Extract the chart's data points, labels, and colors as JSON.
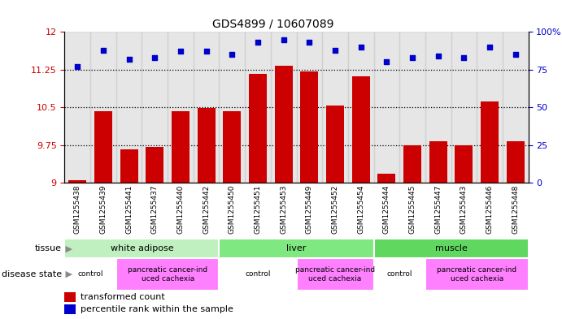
{
  "title": "GDS4899 / 10607089",
  "samples": [
    "GSM1255438",
    "GSM1255439",
    "GSM1255441",
    "GSM1255437",
    "GSM1255440",
    "GSM1255442",
    "GSM1255450",
    "GSM1255451",
    "GSM1255453",
    "GSM1255449",
    "GSM1255452",
    "GSM1255454",
    "GSM1255444",
    "GSM1255445",
    "GSM1255447",
    "GSM1255443",
    "GSM1255446",
    "GSM1255448"
  ],
  "bar_values": [
    9.05,
    10.43,
    9.67,
    9.72,
    10.42,
    10.48,
    10.43,
    11.17,
    11.32,
    11.22,
    10.54,
    11.12,
    9.18,
    9.75,
    9.82,
    9.75,
    10.62,
    9.83
  ],
  "dot_values": [
    77,
    88,
    82,
    83,
    87,
    87,
    85,
    93,
    95,
    93,
    88,
    90,
    80,
    83,
    84,
    83,
    90,
    85
  ],
  "ylim_left": [
    9.0,
    12.0
  ],
  "ylim_right": [
    0,
    100
  ],
  "yticks_left": [
    9.0,
    9.75,
    10.5,
    11.25,
    12.0
  ],
  "yticks_right": [
    0,
    25,
    50,
    75,
    100
  ],
  "ytick_labels_left": [
    "9",
    "9.75",
    "10.5",
    "11.25",
    "12"
  ],
  "ytick_labels_right": [
    "0",
    "25",
    "50",
    "75",
    "100%"
  ],
  "bar_color": "#cc0000",
  "dot_color": "#0000cc",
  "col_bg_color": "#c8c8c8",
  "tissue_groups": [
    {
      "label": "white adipose",
      "start": 0,
      "end": 6,
      "color": "#c0f0c0"
    },
    {
      "label": "liver",
      "start": 6,
      "end": 12,
      "color": "#80e880"
    },
    {
      "label": "muscle",
      "start": 12,
      "end": 18,
      "color": "#60d860"
    }
  ],
  "disease_groups": [
    {
      "label": "control",
      "start": 0,
      "end": 2,
      "color": "#ffffff"
    },
    {
      "label": "pancreatic cancer-ind\nuced cachexia",
      "start": 2,
      "end": 6,
      "color": "#ff80ff"
    },
    {
      "label": "control",
      "start": 6,
      "end": 9,
      "color": "#ffffff"
    },
    {
      "label": "pancreatic cancer-ind\nuced cachexia",
      "start": 9,
      "end": 12,
      "color": "#ff80ff"
    },
    {
      "label": "control",
      "start": 12,
      "end": 14,
      "color": "#ffffff"
    },
    {
      "label": "pancreatic cancer-ind\nuced cachexia",
      "start": 14,
      "end": 18,
      "color": "#ff80ff"
    }
  ],
  "legend_items": [
    {
      "label": "transformed count",
      "color": "#cc0000"
    },
    {
      "label": "percentile rank within the sample",
      "color": "#0000cc"
    }
  ],
  "hlines": [
    9.75,
    10.5,
    11.25
  ],
  "title_fontsize": 10,
  "tick_fontsize": 8,
  "sample_fontsize": 6.5,
  "annot_fontsize": 8
}
